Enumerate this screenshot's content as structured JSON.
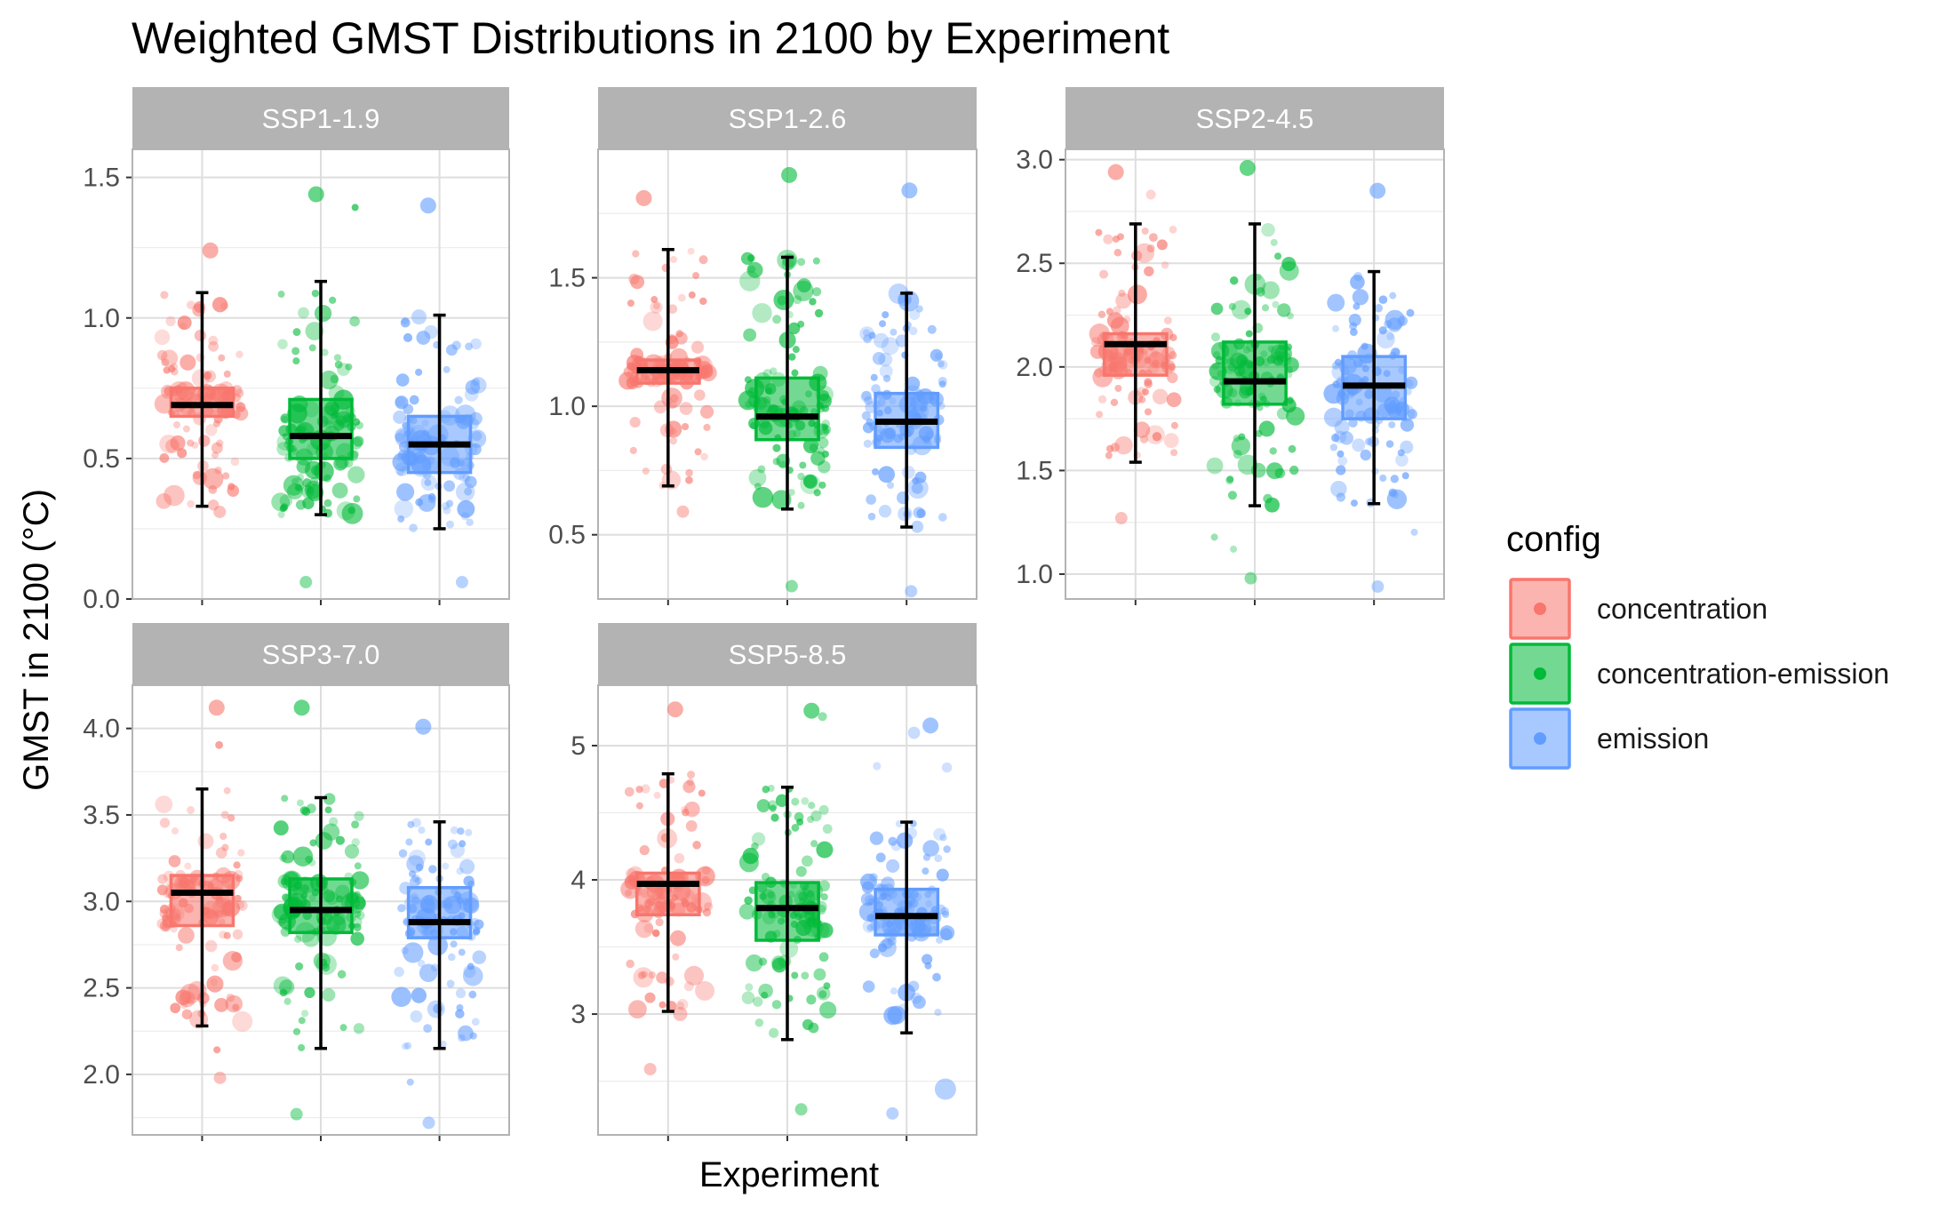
{
  "chart_data": {
    "type": "box",
    "title": "Weighted GMST Distributions in 2100 by Experiment",
    "xlabel": "Experiment",
    "ylabel": "GMST in 2100 (°C)",
    "legend": {
      "title": "config",
      "position": "right",
      "entries": [
        {
          "name": "concentration",
          "color": "#F8766D"
        },
        {
          "name": "concentration-emission",
          "color": "#00BA38"
        },
        {
          "name": "emission",
          "color": "#619CFF"
        }
      ]
    },
    "grid": true,
    "facets": [
      {
        "label": "SSP1-1.9",
        "ylim": [
          0,
          1.6
        ],
        "yticks": [
          0.0,
          0.5,
          1.0,
          1.5
        ],
        "ytick_labels": [
          "0.0",
          "0.5",
          "1.0",
          "1.5"
        ],
        "series": [
          {
            "name": "concentration",
            "q1": 0.65,
            "median": 0.69,
            "q3": 0.75,
            "whisker_low": 0.33,
            "whisker_high": 1.09,
            "min": 0.31,
            "max": 1.24
          },
          {
            "name": "concentration-emission",
            "q1": 0.5,
            "median": 0.58,
            "q3": 0.71,
            "whisker_low": 0.3,
            "whisker_high": 1.13,
            "min": 0.06,
            "max": 1.44
          },
          {
            "name": "emission",
            "q1": 0.45,
            "median": 0.55,
            "q3": 0.65,
            "whisker_low": 0.25,
            "whisker_high": 1.01,
            "min": 0.06,
            "max": 1.4
          }
        ]
      },
      {
        "label": "SSP1-2.6",
        "ylim": [
          0.25,
          2.0
        ],
        "yticks": [
          0.5,
          1.0,
          1.5
        ],
        "ytick_labels": [
          "0.5",
          "1.0",
          "1.5"
        ],
        "series": [
          {
            "name": "concentration",
            "q1": 1.09,
            "median": 1.14,
            "q3": 1.18,
            "whisker_low": 0.69,
            "whisker_high": 1.61,
            "min": 0.59,
            "max": 1.81
          },
          {
            "name": "concentration-emission",
            "q1": 0.87,
            "median": 0.96,
            "q3": 1.11,
            "whisker_low": 0.6,
            "whisker_high": 1.58,
            "min": 0.3,
            "max": 1.9
          },
          {
            "name": "emission",
            "q1": 0.84,
            "median": 0.94,
            "q3": 1.05,
            "whisker_low": 0.53,
            "whisker_high": 1.44,
            "min": 0.28,
            "max": 1.84
          }
        ]
      },
      {
        "label": "SSP2-4.5",
        "ylim": [
          0.88,
          3.05
        ],
        "yticks": [
          1.0,
          1.5,
          2.0,
          2.5,
          3.0
        ],
        "ytick_labels": [
          "1.0",
          "1.5",
          "2.0",
          "2.5",
          "3.0"
        ],
        "series": [
          {
            "name": "concentration",
            "q1": 1.96,
            "median": 2.11,
            "q3": 2.16,
            "whisker_low": 1.54,
            "whisker_high": 2.69,
            "min": 1.27,
            "max": 2.94
          },
          {
            "name": "concentration-emission",
            "q1": 1.82,
            "median": 1.93,
            "q3": 2.12,
            "whisker_low": 1.33,
            "whisker_high": 2.69,
            "min": 0.98,
            "max": 2.96
          },
          {
            "name": "emission",
            "q1": 1.75,
            "median": 1.91,
            "q3": 2.05,
            "whisker_low": 1.34,
            "whisker_high": 2.46,
            "min": 0.94,
            "max": 2.85
          }
        ]
      },
      {
        "label": "SSP3-7.0",
        "ylim": [
          1.65,
          4.25
        ],
        "yticks": [
          2.0,
          2.5,
          3.0,
          3.5,
          4.0
        ],
        "ytick_labels": [
          "2.0",
          "2.5",
          "3.0",
          "3.5",
          "4.0"
        ],
        "series": [
          {
            "name": "concentration",
            "q1": 2.86,
            "median": 3.05,
            "q3": 3.15,
            "whisker_low": 2.28,
            "whisker_high": 3.65,
            "min": 1.98,
            "max": 4.12
          },
          {
            "name": "concentration-emission",
            "q1": 2.82,
            "median": 2.95,
            "q3": 3.13,
            "whisker_low": 2.15,
            "whisker_high": 3.6,
            "min": 1.77,
            "max": 4.12
          },
          {
            "name": "emission",
            "q1": 2.79,
            "median": 2.88,
            "q3": 3.08,
            "whisker_low": 2.15,
            "whisker_high": 3.46,
            "min": 1.72,
            "max": 4.01
          }
        ]
      },
      {
        "label": "SSP5-8.5",
        "ylim": [
          2.1,
          5.45
        ],
        "yticks": [
          3,
          4,
          5
        ],
        "ytick_labels": [
          "3",
          "4",
          "5"
        ],
        "series": [
          {
            "name": "concentration",
            "q1": 3.74,
            "median": 3.97,
            "q3": 4.05,
            "whisker_low": 3.02,
            "whisker_high": 4.79,
            "min": 2.59,
            "max": 5.27
          },
          {
            "name": "concentration-emission",
            "q1": 3.55,
            "median": 3.79,
            "q3": 3.98,
            "whisker_low": 2.81,
            "whisker_high": 4.69,
            "min": 2.29,
            "max": 5.26
          },
          {
            "name": "emission",
            "q1": 3.59,
            "median": 3.73,
            "q3": 3.93,
            "whisker_low": 2.86,
            "whisker_high": 4.43,
            "min": 2.26,
            "max": 5.15
          }
        ]
      }
    ]
  }
}
